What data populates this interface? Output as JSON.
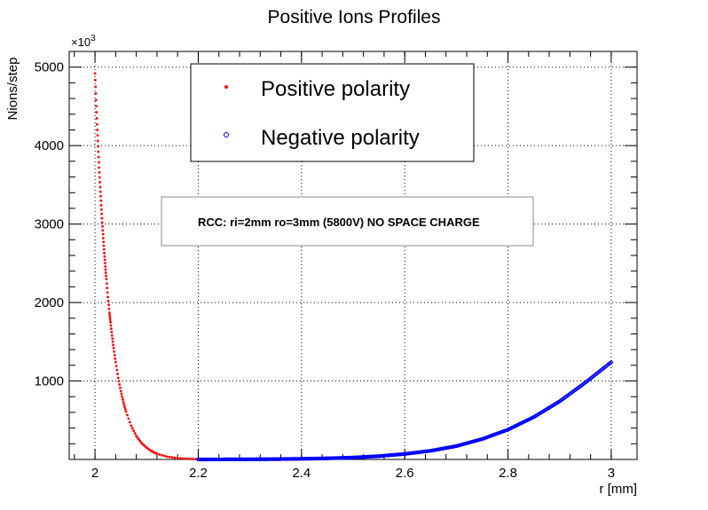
{
  "chart_data": {
    "type": "scatter",
    "title": "Positive Ions Profiles",
    "xlabel": "r [mm]",
    "ylabel": "Nions/step",
    "y_exponent_label": "×10",
    "y_exponent_power": "3",
    "xlim": [
      1.95,
      3.05
    ],
    "ylim": [
      0,
      5200
    ],
    "x_ticks": [
      2,
      2.2,
      2.4,
      2.6,
      2.8,
      3
    ],
    "x_tick_labels": [
      "2",
      "2.2",
      "2.4",
      "2.6",
      "2.8",
      "3"
    ],
    "y_ticks": [
      1000,
      2000,
      3000,
      4000,
      5000
    ],
    "y_tick_labels": [
      "1000",
      "2000",
      "3000",
      "4000",
      "5000"
    ],
    "grid": true,
    "legend_position": "top-center",
    "annotation": "RCC: ri=2mm ro=3mm (5800V) NO SPACE CHARGE",
    "series": [
      {
        "name": "Positive polarity",
        "marker": "dot",
        "color": "#ff0000",
        "x": [
          2.0,
          2.002,
          2.004,
          2.006,
          2.008,
          2.01,
          2.012,
          2.014,
          2.016,
          2.018,
          2.02,
          2.022,
          2.025,
          2.028,
          2.03,
          2.033,
          2.036,
          2.04,
          2.045,
          2.05,
          2.055,
          2.06,
          2.07,
          2.08,
          2.09,
          2.1,
          2.11,
          2.12,
          2.14,
          2.16,
          2.18,
          2.2
        ],
        "y": [
          4920,
          4580,
          4270,
          3990,
          3720,
          3470,
          3240,
          3020,
          2820,
          2630,
          2460,
          2300,
          2070,
          1870,
          1750,
          1580,
          1420,
          1240,
          1040,
          870,
          730,
          610,
          430,
          300,
          210,
          150,
          105,
          72,
          35,
          17,
          8,
          4
        ]
      },
      {
        "name": "Negative polarity",
        "marker": "open-circle",
        "color": "#0000ff",
        "x": [
          2.2,
          2.25,
          2.3,
          2.35,
          2.4,
          2.45,
          2.5,
          2.55,
          2.6,
          2.65,
          2.7,
          2.75,
          2.8,
          2.85,
          2.9,
          2.95,
          3.0
        ],
        "y": [
          0,
          1,
          2,
          4,
          8,
          14,
          24,
          42,
          70,
          110,
          170,
          260,
          380,
          540,
          740,
          980,
          1240
        ]
      }
    ]
  }
}
